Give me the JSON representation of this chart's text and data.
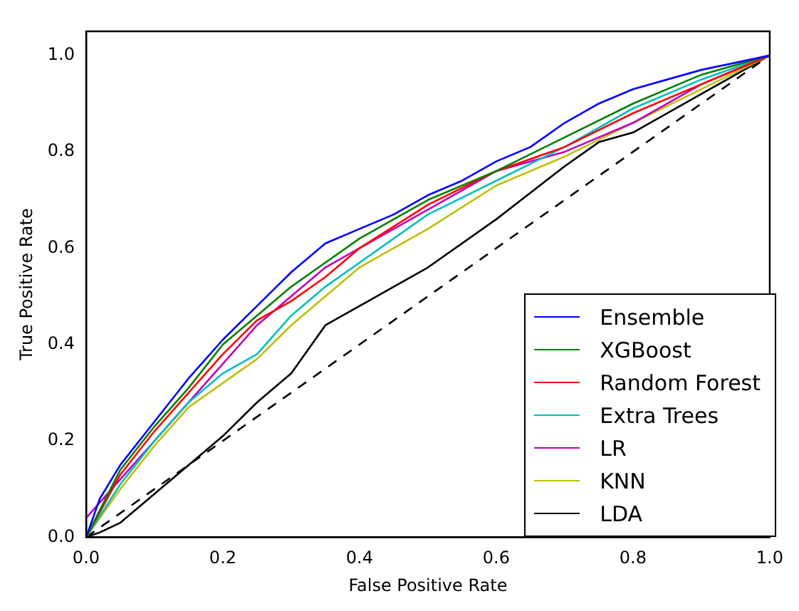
{
  "chart_data": {
    "type": "line",
    "xlabel": "False Positive Rate",
    "ylabel": "True Positive Rate",
    "xlim": [
      0,
      1
    ],
    "ylim": [
      0,
      1.05
    ],
    "xticks": [
      {
        "value": 0,
        "label": "0.0"
      },
      {
        "value": 0.2,
        "label": "0.2"
      },
      {
        "value": 0.4,
        "label": "0.4"
      },
      {
        "value": 0.6,
        "label": "0.6"
      },
      {
        "value": 0.8,
        "label": "0.8"
      },
      {
        "value": 1,
        "label": "1.0"
      }
    ],
    "yticks": [
      {
        "value": 0,
        "label": "0.0"
      },
      {
        "value": 0.2,
        "label": "0.2"
      },
      {
        "value": 0.4,
        "label": "0.4"
      },
      {
        "value": 0.6,
        "label": "0.6"
      },
      {
        "value": 0.8,
        "label": "0.8"
      },
      {
        "value": 1,
        "label": "1.0"
      }
    ],
    "grid": false,
    "legend": "bottom right",
    "marker": "none",
    "line_style": "solid",
    "series": [
      {
        "name": "Ensemble",
        "color": "#0000ff",
        "x": [
          0,
          0.02,
          0.05,
          0.1,
          0.15,
          0.2,
          0.25,
          0.3,
          0.35,
          0.4,
          0.45,
          0.5,
          0.55,
          0.6,
          0.65,
          0.7,
          0.75,
          0.8,
          0.9,
          1
        ],
        "values": [
          0,
          0.08,
          0.15,
          0.24,
          0.33,
          0.41,
          0.48,
          0.55,
          0.61,
          0.64,
          0.67,
          0.71,
          0.74,
          0.78,
          0.81,
          0.86,
          0.9,
          0.93,
          0.97,
          1
        ]
      },
      {
        "name": "XGBoost",
        "color": "#008000",
        "x": [
          0,
          0.05,
          0.1,
          0.15,
          0.2,
          0.25,
          0.3,
          0.35,
          0.4,
          0.45,
          0.5,
          0.6,
          0.7,
          0.8,
          0.9,
          1
        ],
        "values": [
          0,
          0.14,
          0.23,
          0.31,
          0.4,
          0.46,
          0.52,
          0.57,
          0.62,
          0.66,
          0.7,
          0.76,
          0.83,
          0.9,
          0.96,
          1
        ]
      },
      {
        "name": "Random Forest",
        "color": "#ff0000",
        "x": [
          0,
          0.05,
          0.1,
          0.15,
          0.2,
          0.25,
          0.3,
          0.35,
          0.4,
          0.5,
          0.6,
          0.7,
          0.8,
          0.9,
          1
        ],
        "values": [
          0,
          0.13,
          0.22,
          0.3,
          0.38,
          0.45,
          0.49,
          0.54,
          0.6,
          0.69,
          0.76,
          0.81,
          0.88,
          0.94,
          1
        ]
      },
      {
        "name": "Extra Trees",
        "color": "#00bfbf",
        "x": [
          0,
          0.05,
          0.1,
          0.15,
          0.2,
          0.25,
          0.3,
          0.35,
          0.4,
          0.5,
          0.6,
          0.7,
          0.8,
          0.9,
          1
        ],
        "values": [
          0,
          0.11,
          0.2,
          0.28,
          0.34,
          0.38,
          0.46,
          0.52,
          0.57,
          0.67,
          0.74,
          0.81,
          0.89,
          0.95,
          1
        ]
      },
      {
        "name": "LR",
        "color": "#bf00bf",
        "x": [
          0,
          0.05,
          0.1,
          0.15,
          0.2,
          0.25,
          0.3,
          0.35,
          0.4,
          0.5,
          0.6,
          0.7,
          0.8,
          0.9,
          1
        ],
        "values": [
          0.04,
          0.12,
          0.2,
          0.28,
          0.36,
          0.44,
          0.5,
          0.56,
          0.6,
          0.68,
          0.76,
          0.8,
          0.86,
          0.94,
          1
        ]
      },
      {
        "name": "KNN",
        "color": "#bfbf00",
        "x": [
          0,
          0.05,
          0.1,
          0.15,
          0.2,
          0.25,
          0.3,
          0.35,
          0.4,
          0.5,
          0.6,
          0.7,
          0.8,
          0.9,
          1
        ],
        "values": [
          0,
          0.1,
          0.19,
          0.27,
          0.32,
          0.37,
          0.44,
          0.5,
          0.56,
          0.64,
          0.73,
          0.79,
          0.86,
          0.93,
          1
        ]
      },
      {
        "name": "LDA",
        "color": "#000000",
        "x": [
          0,
          0.02,
          0.05,
          0.1,
          0.15,
          0.2,
          0.25,
          0.3,
          0.35,
          0.4,
          0.45,
          0.5,
          0.6,
          0.7,
          0.75,
          0.8,
          0.9,
          0.95,
          1
        ],
        "values": [
          0,
          0.01,
          0.03,
          0.09,
          0.15,
          0.21,
          0.28,
          0.34,
          0.44,
          0.48,
          0.52,
          0.56,
          0.66,
          0.77,
          0.82,
          0.84,
          0.92,
          0.96,
          1
        ]
      },
      {
        "color": "#000000",
        "line_style": "dashed",
        "x": [
          0,
          1
        ],
        "values": [
          0,
          1
        ]
      }
    ]
  }
}
